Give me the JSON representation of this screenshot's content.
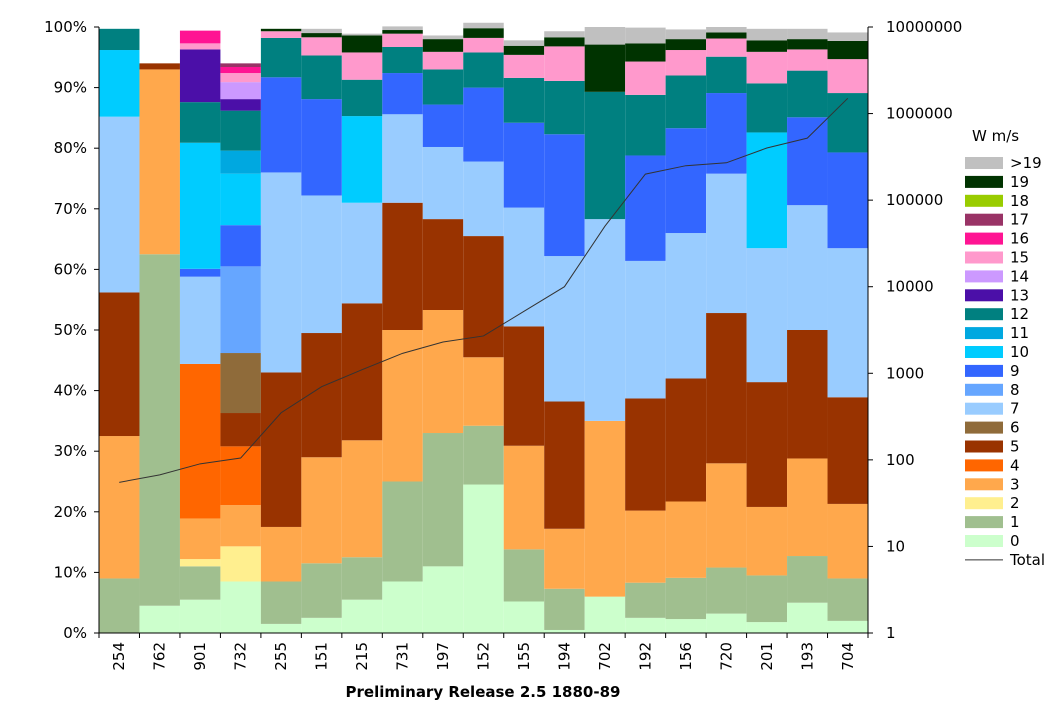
{
  "chart_data": {
    "type": "stacked-bar-percent-with-line",
    "title": "",
    "xlabel": "Preliminary Release 2.5 1880-89",
    "ylabel": "",
    "y_left": {
      "range": [
        0,
        100
      ],
      "tick_labels": [
        "0%",
        "10%",
        "20%",
        "30%",
        "40%",
        "50%",
        "60%",
        "70%",
        "80%",
        "90%",
        "100%"
      ]
    },
    "y_right": {
      "scale": "log",
      "range": [
        1,
        10000000
      ],
      "tick_labels": [
        "1",
        "10",
        "100",
        "1000",
        "10000",
        "100000",
        "1000000",
        "10000000"
      ]
    },
    "legend_title": "W  m/s",
    "legend_position": "right",
    "categories": [
      "254",
      "762",
      "901",
      "732",
      "255",
      "151",
      "215",
      "731",
      "197",
      "152",
      "155",
      "194",
      "702",
      "192",
      "156",
      "720",
      "201",
      "193",
      "704"
    ],
    "series": [
      {
        "name": "0",
        "color": "#ccffcc",
        "values": [
          0,
          4.5,
          5.5,
          8.5,
          1.5,
          2.5,
          5.5,
          8.5,
          11,
          24.5,
          5.2,
          0.5,
          6,
          2.5,
          2.3,
          3.2,
          1.8,
          5,
          2
        ]
      },
      {
        "name": "1",
        "color": "#a0bf8f",
        "values": [
          9,
          58,
          5.5,
          0,
          7,
          9,
          7,
          16.5,
          22,
          9.7,
          8.6,
          6.8,
          0,
          5.8,
          6.8,
          7.6,
          7.7,
          7.7,
          7
        ]
      },
      {
        "name": "2",
        "color": "#ffef8f",
        "values": [
          0,
          0,
          1.2,
          5.8,
          0,
          0,
          0,
          0,
          0,
          0,
          0,
          0,
          0,
          0,
          0,
          0,
          0,
          0,
          0
        ]
      },
      {
        "name": "3",
        "color": "#ffa84c",
        "values": [
          23.5,
          30.5,
          6.7,
          6.8,
          9,
          17.5,
          19.3,
          25,
          20.3,
          11.3,
          17.1,
          9.9,
          29,
          11.9,
          12.6,
          17.2,
          11.3,
          16.1,
          12.3
        ]
      },
      {
        "name": "4",
        "color": "#ff6600",
        "values": [
          0,
          0,
          25.5,
          9.7,
          0,
          0,
          0,
          0,
          0,
          0,
          0,
          0,
          0,
          0,
          0,
          0,
          0,
          0,
          0
        ]
      },
      {
        "name": "5",
        "color": "#993300",
        "values": [
          23.7,
          1,
          0,
          5.5,
          25.5,
          20.5,
          22.6,
          21,
          15,
          20,
          19.7,
          21,
          0,
          18.5,
          20.3,
          24.8,
          20.6,
          21.2,
          17.6
        ]
      },
      {
        "name": "6",
        "color": "#8f6b3a",
        "values": [
          0,
          0,
          0,
          9.9,
          0,
          0,
          0,
          0,
          0,
          0,
          0,
          0,
          0,
          0,
          0,
          0,
          0,
          0,
          0
        ]
      },
      {
        "name": "7",
        "color": "#99ccff",
        "values": [
          29,
          0,
          14.4,
          0,
          33,
          22.7,
          16.6,
          14.6,
          11.9,
          12.3,
          19.6,
          24,
          33.3,
          22.7,
          24,
          23,
          22.1,
          20.6,
          24.6
        ]
      },
      {
        "name": "8",
        "color": "#66a6ff",
        "values": [
          0,
          0,
          0,
          14.3,
          0,
          0,
          0,
          0,
          0,
          0,
          0,
          0,
          0,
          0,
          0,
          0,
          0,
          0,
          0
        ]
      },
      {
        "name": "9",
        "color": "#3366ff",
        "values": [
          0,
          0,
          1.3,
          6.8,
          15.7,
          15.9,
          0,
          6.8,
          7,
          12.2,
          14,
          20.1,
          0,
          17.4,
          17.3,
          13.3,
          0,
          14.5,
          15.8
        ]
      },
      {
        "name": "10",
        "color": "#00ccff",
        "values": [
          11,
          0,
          20.8,
          8.5,
          0,
          0,
          14.3,
          0,
          0,
          0,
          0,
          0,
          0,
          0,
          0,
          0,
          19.1,
          0,
          0
        ]
      },
      {
        "name": "11",
        "color": "#00a8e0",
        "values": [
          0,
          0,
          0,
          3.8,
          0,
          0,
          0,
          0,
          0,
          0,
          0,
          0,
          0,
          0,
          0,
          0,
          0,
          0,
          0
        ]
      },
      {
        "name": "12",
        "color": "#008080",
        "values": [
          3.5,
          0,
          6.7,
          6.6,
          6.5,
          7.2,
          6,
          4.3,
          5.8,
          5.8,
          7.4,
          8.8,
          21,
          10,
          8.7,
          6,
          8.1,
          7.7,
          9.8
        ]
      },
      {
        "name": "13",
        "color": "#4b0fa8",
        "values": [
          0,
          0,
          8.7,
          1.9,
          0,
          0,
          0,
          0,
          0,
          0,
          0,
          0,
          0,
          0,
          0,
          0,
          0,
          0,
          0
        ]
      },
      {
        "name": "14",
        "color": "#cc99ff",
        "values": [
          0,
          0,
          0,
          2.8,
          0,
          0,
          0,
          0,
          0,
          0,
          0,
          0,
          0,
          0,
          0,
          0,
          0,
          0,
          0
        ]
      },
      {
        "name": "15",
        "color": "#ff99cc",
        "values": [
          0,
          0,
          1,
          1.5,
          1.1,
          3,
          4.5,
          2.2,
          2.9,
          2.4,
          3.8,
          5.7,
          0,
          5.5,
          4.2,
          3,
          5.2,
          3.5,
          5.6
        ]
      },
      {
        "name": "16",
        "color": "#ff1493",
        "values": [
          0,
          0,
          2.1,
          1,
          0,
          0,
          0,
          0,
          0,
          0,
          0,
          0,
          0,
          0,
          0,
          0,
          0,
          0,
          0
        ]
      },
      {
        "name": "17",
        "color": "#993366",
        "values": [
          0,
          0,
          0,
          0.6,
          0,
          0,
          0,
          0,
          0,
          0,
          0,
          0,
          0,
          0,
          0,
          0,
          0,
          0,
          0
        ]
      },
      {
        "name": "18",
        "color": "#99cc00",
        "values": [
          0,
          0,
          0,
          0,
          0,
          0,
          0,
          0,
          0,
          0,
          0,
          0,
          0,
          0,
          0,
          0,
          0,
          0,
          0
        ]
      },
      {
        "name": "19",
        "color": "#003300",
        "values": [
          0,
          0,
          0,
          0,
          0.4,
          0.7,
          2.8,
          0.6,
          2.1,
          1.6,
          1.5,
          1.5,
          7.8,
          3,
          1.8,
          1,
          1.9,
          1.7,
          3
        ]
      },
      {
        "name": ">19",
        "color": "#c0c0c0",
        "values": [
          0,
          0,
          0,
          0,
          0,
          0.7,
          0.3,
          0.6,
          0.6,
          0.9,
          0.9,
          1,
          2.9,
          2.6,
          1.6,
          0.9,
          1.9,
          1.7,
          1.4
        ]
      }
    ],
    "line": {
      "name": "Total",
      "color": "#333333",
      "axis": "right",
      "values": [
        55,
        67,
        90,
        105,
        350,
        700,
        1100,
        1700,
        2300,
        2700,
        5200,
        10000,
        50000,
        200000,
        250000,
        270000,
        400000,
        520000,
        1500000
      ]
    }
  }
}
